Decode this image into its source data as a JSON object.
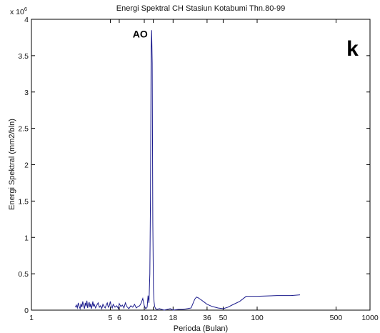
{
  "chart_data": {
    "type": "line",
    "title": "Energi Spektral CH Stasiun Kotabumi Thn.80-99",
    "xlabel": "Perioda (Bulan)",
    "ylabel": "Energi Spektral (mm2/bln)",
    "x_scale": "log",
    "xlim": [
      1,
      1000
    ],
    "ylim": [
      0,
      4
    ],
    "y_multiplier": {
      "base": "x 10",
      "power": "6"
    },
    "x_ticks": [
      {
        "value": 1,
        "label": "1"
      },
      {
        "value": 5,
        "label": "5"
      },
      {
        "value": 6,
        "label": "6"
      },
      {
        "value": 10,
        "label": "10"
      },
      {
        "value": 12,
        "label": "12"
      },
      {
        "value": 18,
        "label": "18"
      },
      {
        "value": 36,
        "label": "36"
      },
      {
        "value": 50,
        "label": "50"
      },
      {
        "value": 100,
        "label": "100"
      },
      {
        "value": 500,
        "label": "500"
      },
      {
        "value": 1000,
        "label": "1000"
      }
    ],
    "y_ticks": [
      {
        "value": 0,
        "label": "0"
      },
      {
        "value": 0.5,
        "label": "0.5"
      },
      {
        "value": 1,
        "label": "1"
      },
      {
        "value": 1.5,
        "label": "1.5"
      },
      {
        "value": 2,
        "label": "2"
      },
      {
        "value": 2.5,
        "label": "2.5"
      },
      {
        "value": 3,
        "label": "3"
      },
      {
        "value": 3.5,
        "label": "3.5"
      },
      {
        "value": 4,
        "label": "4"
      }
    ],
    "grid": false,
    "series": [
      {
        "color": "#1a1a8c",
        "x": [
          2.45,
          2.5,
          2.55,
          2.6,
          2.65,
          2.7,
          2.75,
          2.8,
          2.85,
          2.9,
          2.95,
          3.0,
          3.05,
          3.1,
          3.15,
          3.2,
          3.25,
          3.3,
          3.35,
          3.4,
          3.45,
          3.5,
          3.55,
          3.6,
          3.7,
          3.8,
          3.9,
          4.0,
          4.1,
          4.2,
          4.3,
          4.4,
          4.5,
          4.6,
          4.7,
          4.8,
          4.9,
          5.0,
          5.1,
          5.2,
          5.3,
          5.5,
          5.7,
          5.9,
          6.0,
          6.2,
          6.4,
          6.6,
          6.8,
          7.0,
          7.3,
          7.6,
          7.9,
          8.2,
          8.5,
          8.8,
          9.1,
          9.4,
          9.7,
          10.0,
          10.3,
          10.6,
          10.8,
          11.0,
          11.2,
          11.35,
          11.5,
          11.62,
          11.75,
          11.9,
          12.05,
          12.2,
          12.35,
          12.6,
          13.0,
          13.6,
          14.3,
          15,
          16,
          17,
          18,
          20,
          22,
          24,
          26,
          28,
          29,
          30,
          32,
          34,
          36,
          40,
          45,
          50,
          55,
          60,
          70,
          80,
          100,
          150,
          200,
          240
        ],
        "y": [
          0.04,
          0.07,
          0.03,
          0.1,
          0.05,
          0.02,
          0.09,
          0.04,
          0.12,
          0.06,
          0.02,
          0.1,
          0.05,
          0.13,
          0.03,
          0.08,
          0.11,
          0.04,
          0.09,
          0.02,
          0.06,
          0.12,
          0.05,
          0.08,
          0.03,
          0.07,
          0.1,
          0.04,
          0.06,
          0.02,
          0.08,
          0.05,
          0.03,
          0.07,
          0.1,
          0.04,
          0.06,
          0.12,
          0.05,
          0.03,
          0.08,
          0.04,
          0.06,
          0.02,
          0.09,
          0.05,
          0.07,
          0.03,
          0.1,
          0.05,
          0.02,
          0.06,
          0.04,
          0.08,
          0.03,
          0.05,
          0.06,
          0.1,
          0.16,
          0.06,
          0.02,
          0.04,
          0.2,
          0.1,
          0.5,
          1.6,
          3.6,
          3.85,
          3.4,
          1.2,
          0.3,
          0.12,
          0.05,
          0.02,
          0.01,
          0.02,
          0.01,
          0.0,
          0.01,
          0.02,
          0.0,
          0.01,
          0.01,
          0.02,
          0.03,
          0.15,
          0.18,
          0.17,
          0.14,
          0.11,
          0.08,
          0.05,
          0.03,
          0.02,
          0.04,
          0.07,
          0.12,
          0.19,
          0.19,
          0.2,
          0.2,
          0.21
        ]
      }
    ],
    "annotations": [
      {
        "text": "AO",
        "x": 9.2,
        "y": 3.75
      },
      {
        "text": "k",
        "x": 700,
        "y": 3.5
      }
    ]
  }
}
